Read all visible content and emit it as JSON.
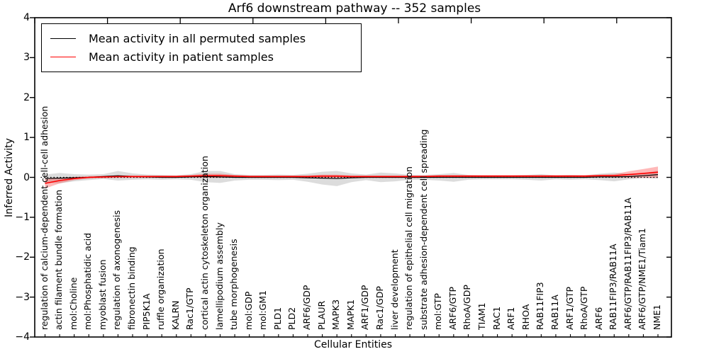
{
  "chart_data": {
    "type": "line",
    "title": "Arf6 downstream pathway -- 352 samples",
    "xlabel": "Cellular Entities",
    "ylabel": "Inferred Activity",
    "ylim": [
      -4,
      4
    ],
    "yticks": [
      4,
      3,
      2,
      1,
      0,
      -1,
      -2,
      -3,
      -4
    ],
    "ytick_labels": [
      "4",
      "3",
      "2",
      "1",
      "0",
      "−1",
      "−2",
      "−3",
      "−4"
    ],
    "grid": false,
    "zero_line_dotted": true,
    "legend_position": "upper left",
    "categories": [
      "regulation of calcium-dependent cell-cell adhesion",
      "actin filament bundle formation",
      "mol:Choline",
      "mol:Phosphatidic acid",
      "myoblast fusion",
      "regulation of axonogenesis",
      "fibronectin binding",
      "PIP5K1A",
      "ruffle organization",
      "KALRN",
      "Rac1/GTP",
      "cortical actin cytoskeleton organization",
      "lamellipodium assembly",
      "tube morphogenesis",
      "mol:GDP",
      "mol:GM1",
      "PLD1",
      "PLD2",
      "ARF6/GDP",
      "PLAUR",
      "MAPK3",
      "MAPK1",
      "ARF1/GDP",
      "Rac1/GDP",
      "liver development",
      "regulation of epithelial cell migration",
      "substrate adhesion-dependent cell spreading",
      "mol:GTP",
      "ARF6/GTP",
      "RhoA/GDP",
      "TIAM1",
      "RAC1",
      "ARF1",
      "RHOA",
      "RAB11FIP3",
      "RAB11A",
      "ARF1/GTP",
      "RhoA/GTP",
      "ARF6",
      "RAB11FIP3/RAB11A",
      "ARF6/GTP/RAB11FIP3/RAB11A",
      "ARF6/GTP/NME1/Tiam1",
      "NME1"
    ],
    "series": [
      {
        "name": "Mean activity in all permuted samples",
        "color": "#000000",
        "line_width": 1.2,
        "values": [
          -0.03,
          -0.02,
          -0.01,
          0.0,
          0.02,
          0.04,
          0.02,
          0.01,
          0.0,
          0.0,
          0.01,
          0.02,
          0.01,
          0.0,
          0.0,
          0.0,
          0.0,
          0.0,
          -0.01,
          -0.02,
          -0.03,
          -0.01,
          0.0,
          0.0,
          0.0,
          0.0,
          0.0,
          0.0,
          0.0,
          0.0,
          0.0,
          0.0,
          0.0,
          0.0,
          0.0,
          0.0,
          0.0,
          0.0,
          0.01,
          0.01,
          0.02,
          0.04,
          0.07
        ],
        "band_halfwidth": [
          0.1,
          0.13,
          0.09,
          0.07,
          0.06,
          0.12,
          0.08,
          0.06,
          0.06,
          0.05,
          0.07,
          0.14,
          0.15,
          0.08,
          0.06,
          0.06,
          0.07,
          0.06,
          0.1,
          0.16,
          0.19,
          0.11,
          0.07,
          0.12,
          0.1,
          0.06,
          0.06,
          0.08,
          0.11,
          0.06,
          0.05,
          0.05,
          0.05,
          0.06,
          0.08,
          0.05,
          0.06,
          0.05,
          0.08,
          0.11,
          0.07,
          0.06,
          0.1
        ],
        "band_color": "#808080",
        "band_opacity": 0.28
      },
      {
        "name": "Mean activity in patient samples",
        "color": "#ff0000",
        "line_width": 1.6,
        "values": [
          -0.15,
          -0.08,
          -0.03,
          0.0,
          0.01,
          0.02,
          0.02,
          0.02,
          0.02,
          0.02,
          0.03,
          0.04,
          0.04,
          0.03,
          0.02,
          0.02,
          0.02,
          0.02,
          0.02,
          0.03,
          0.03,
          0.02,
          0.02,
          0.02,
          0.02,
          0.02,
          0.02,
          0.03,
          0.03,
          0.03,
          0.03,
          0.03,
          0.03,
          0.03,
          0.03,
          0.03,
          0.03,
          0.03,
          0.04,
          0.04,
          0.07,
          0.1,
          0.13
        ],
        "band_halfwidth": [
          0.13,
          0.07,
          0.04,
          0.03,
          0.03,
          0.03,
          0.03,
          0.03,
          0.03,
          0.03,
          0.03,
          0.05,
          0.05,
          0.03,
          0.03,
          0.03,
          0.03,
          0.03,
          0.03,
          0.04,
          0.04,
          0.03,
          0.03,
          0.03,
          0.03,
          0.03,
          0.03,
          0.03,
          0.03,
          0.03,
          0.03,
          0.03,
          0.03,
          0.03,
          0.03,
          0.03,
          0.03,
          0.03,
          0.03,
          0.04,
          0.08,
          0.11,
          0.14
        ],
        "band_color": "#ff2a2a",
        "band_opacity": 0.33
      }
    ]
  }
}
